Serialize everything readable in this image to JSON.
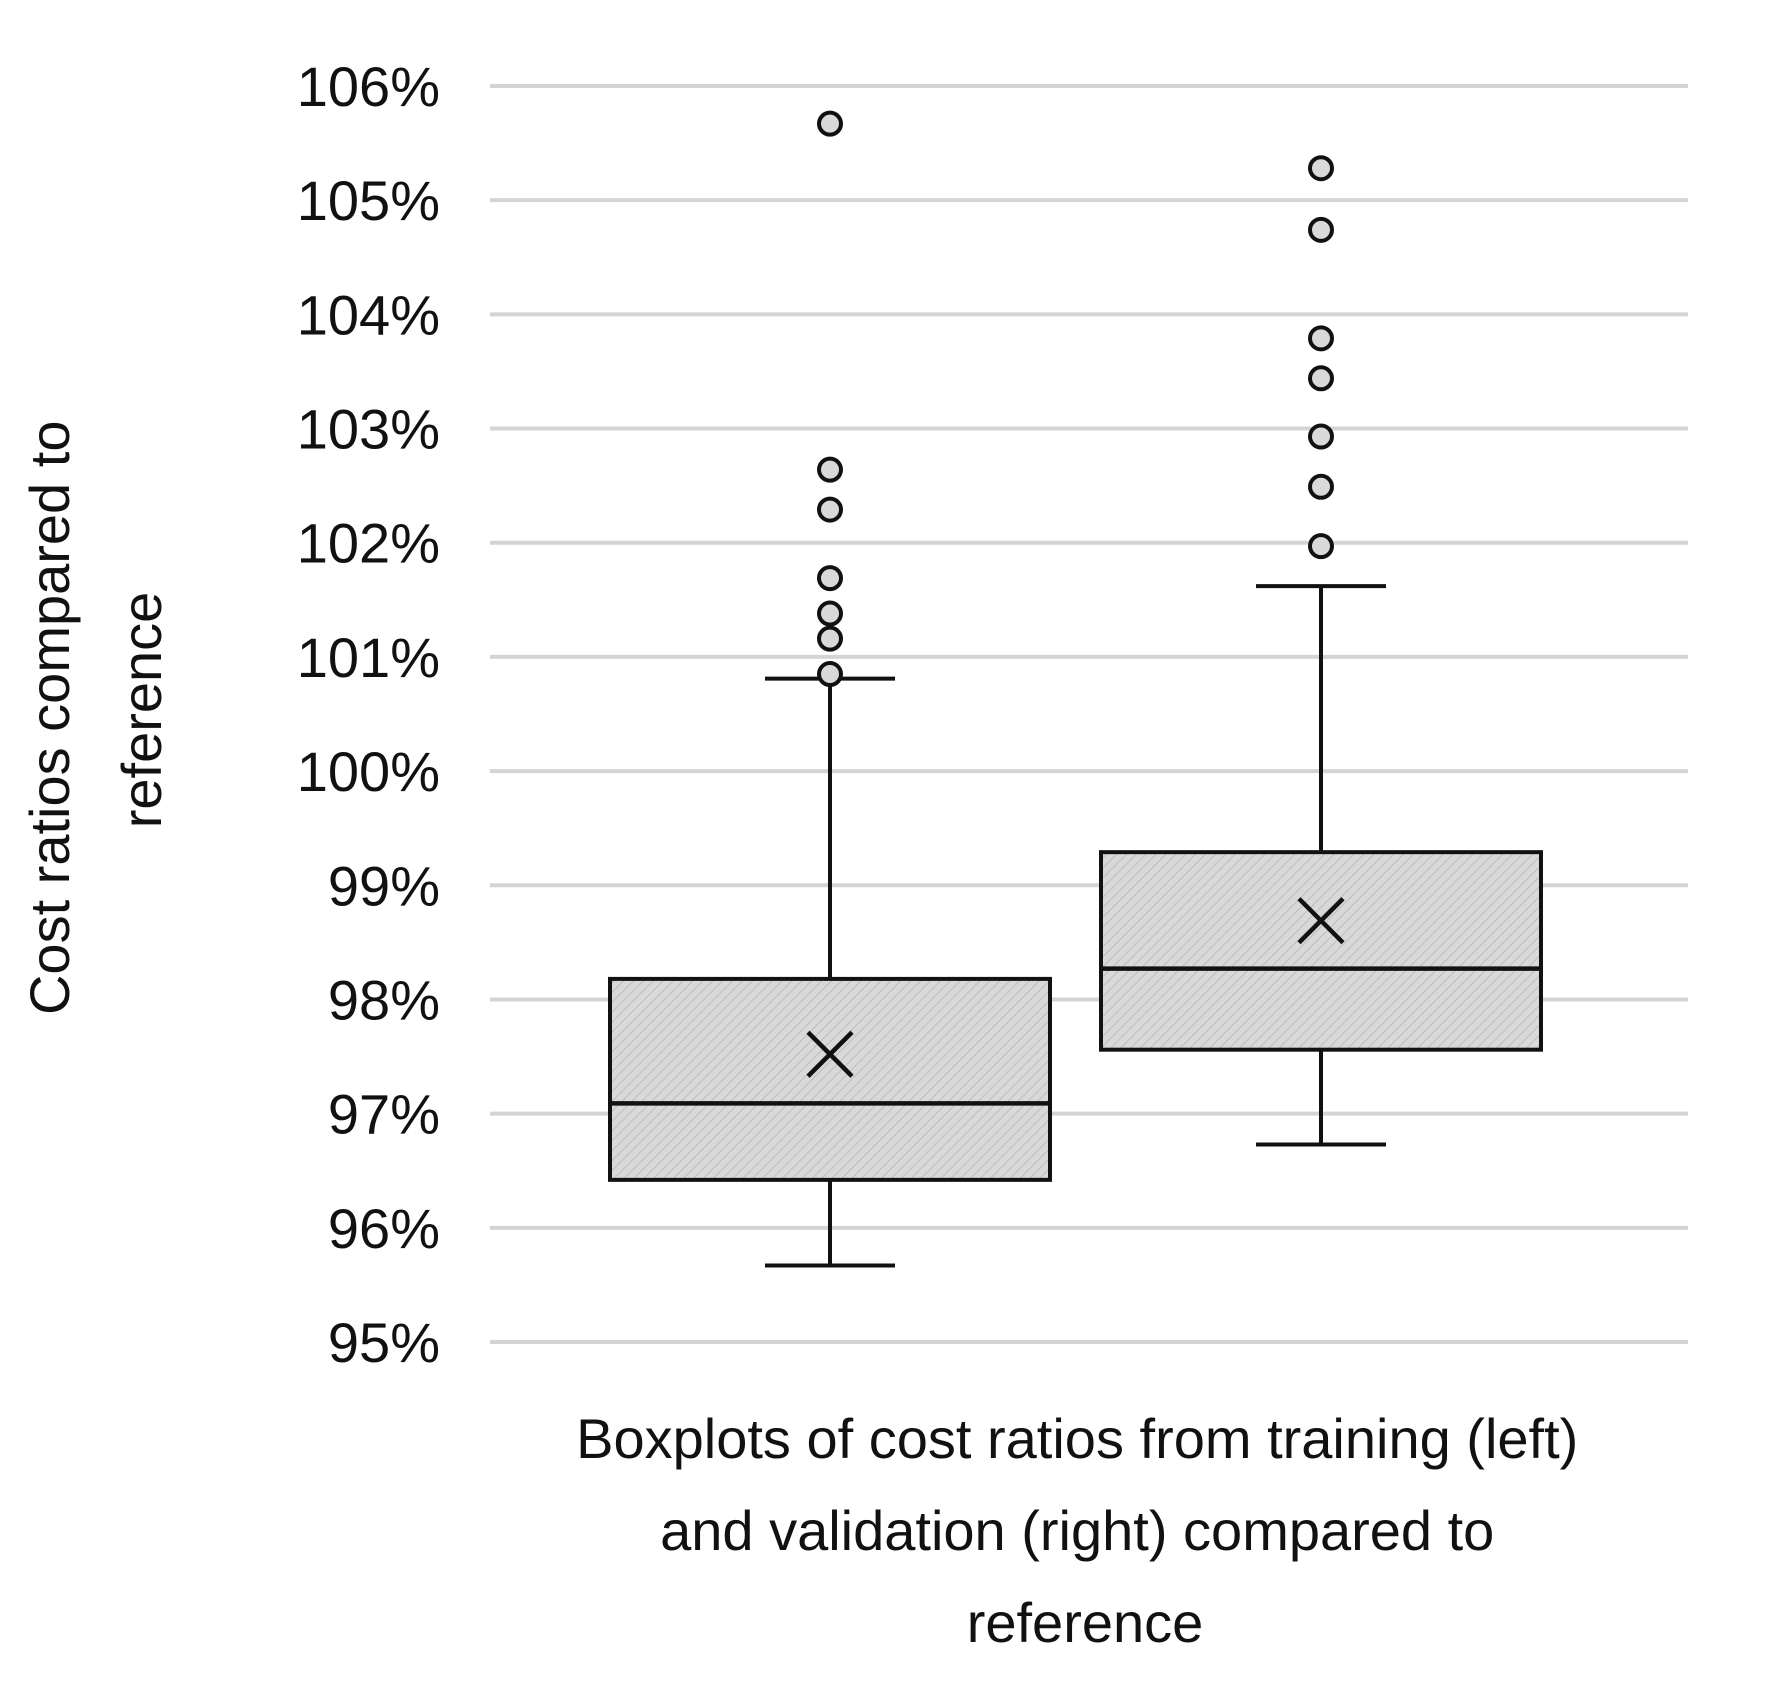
{
  "chart_data": {
    "type": "boxplot",
    "title": "",
    "ylabel_lines": [
      "Cost ratios compared to",
      "reference"
    ],
    "xlabel_lines": [
      "Boxplots of cost ratios from training (left)",
      "and validation (right) compared to",
      "reference"
    ],
    "ylim": [
      95,
      106
    ],
    "y_unit": "%",
    "y_ticks": [
      "95%",
      "96%",
      "97%",
      "98%",
      "99%",
      "100%",
      "101%",
      "102%",
      "103%",
      "104%",
      "105%",
      "106%"
    ],
    "grid": true,
    "fill_color": "#d9d9d9",
    "line_color": "#111111",
    "grid_color": "#d4d4d4",
    "series": [
      {
        "name": "training (left)",
        "whisker_low": 95.67,
        "q1": 96.42,
        "median": 97.09,
        "mean": 97.52,
        "q3": 98.18,
        "whisker_high": 100.81,
        "outliers": [
          105.67,
          102.64,
          102.29,
          101.69,
          101.38,
          101.16,
          100.85
        ]
      },
      {
        "name": "validation (right)",
        "whisker_low": 96.73,
        "q1": 97.56,
        "median": 98.27,
        "mean": 98.69,
        "q3": 99.29,
        "whisker_high": 101.62,
        "outliers": [
          105.28,
          104.74,
          103.79,
          103.44,
          102.93,
          102.49,
          101.97
        ]
      }
    ]
  }
}
